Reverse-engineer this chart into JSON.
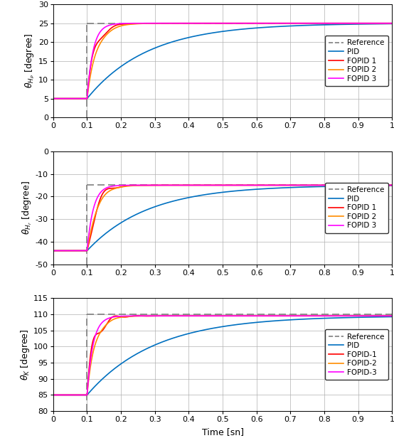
{
  "subplot1": {
    "ylabel": "$\\theta_{H_P}$ [degree]",
    "ylim": [
      0,
      30
    ],
    "yticks": [
      0,
      5,
      10,
      15,
      20,
      25,
      30
    ],
    "ref_value": 25,
    "init_value": 5,
    "step_time": 0.1,
    "legend_labels": [
      "Reference",
      "PID",
      "FOPID 1",
      "FOPID 2",
      "FOPID 3"
    ]
  },
  "subplot2": {
    "ylabel": "$\\theta_{H_r}$ [degree]",
    "ylim": [
      -50,
      0
    ],
    "yticks": [
      -50,
      -40,
      -30,
      -20,
      -10,
      0
    ],
    "ref_value": -15,
    "init_value": -44,
    "step_time": 0.1,
    "legend_labels": [
      "Reference",
      "PID",
      "FOPID 1",
      "FOPID 2",
      "FOPID 3"
    ]
  },
  "subplot3": {
    "ylabel": "$\\theta_K$ [degree]",
    "ylim": [
      80,
      115
    ],
    "yticks": [
      80,
      85,
      90,
      95,
      100,
      105,
      110,
      115
    ],
    "ref_value": 110,
    "init_value": 85,
    "step_time": 0.1,
    "legend_labels": [
      "Reference",
      "PID",
      "FOPID-1",
      "FOPID-2",
      "FOPID-3"
    ]
  },
  "colors": {
    "ref": "#7f7f7f",
    "pid": "#0070C0",
    "fopid1": "#FF0000",
    "fopid2": "#FF8C00",
    "fopid3": "#FF00FF"
  },
  "xlabel": "Time [sn]",
  "xlim": [
    0,
    1
  ],
  "xticks": [
    0,
    0.1,
    0.2,
    0.3,
    0.4,
    0.5,
    0.6,
    0.7,
    0.8,
    0.9,
    1
  ]
}
